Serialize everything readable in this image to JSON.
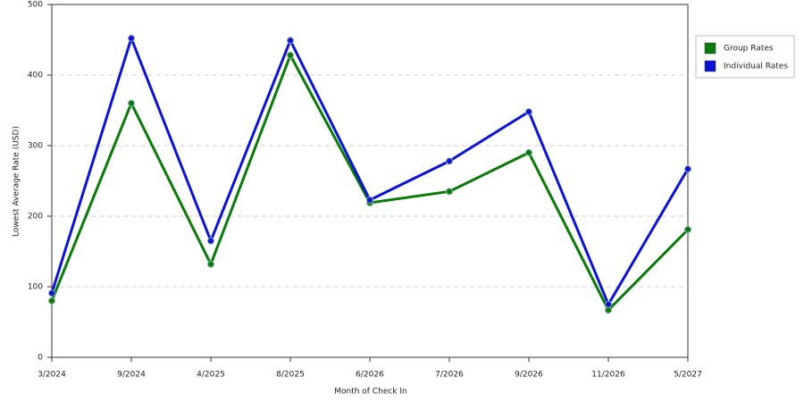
{
  "chart_data": {
    "type": "line",
    "x_label": "Month of Check In",
    "y_label": "Lowest Average Rate (USD)",
    "categories": [
      "3/2024",
      "9/2024",
      "4/2025",
      "8/2025",
      "6/2026",
      "7/2026",
      "9/2026",
      "11/2026",
      "5/2027"
    ],
    "series": [
      {
        "name": "Group Rates",
        "color": "#0a7a0a",
        "values": [
          80,
          360,
          132,
          428,
          219,
          235,
          290,
          67,
          181
        ]
      },
      {
        "name": "Individual Rates",
        "color": "#0a14d2",
        "values": [
          91,
          452,
          165,
          449,
          223,
          278,
          348,
          75,
          267
        ]
      }
    ],
    "ylim": [
      0,
      500
    ],
    "yticks": [
      0,
      100,
      200,
      300,
      400,
      500
    ],
    "grid": true,
    "legend": "right"
  }
}
